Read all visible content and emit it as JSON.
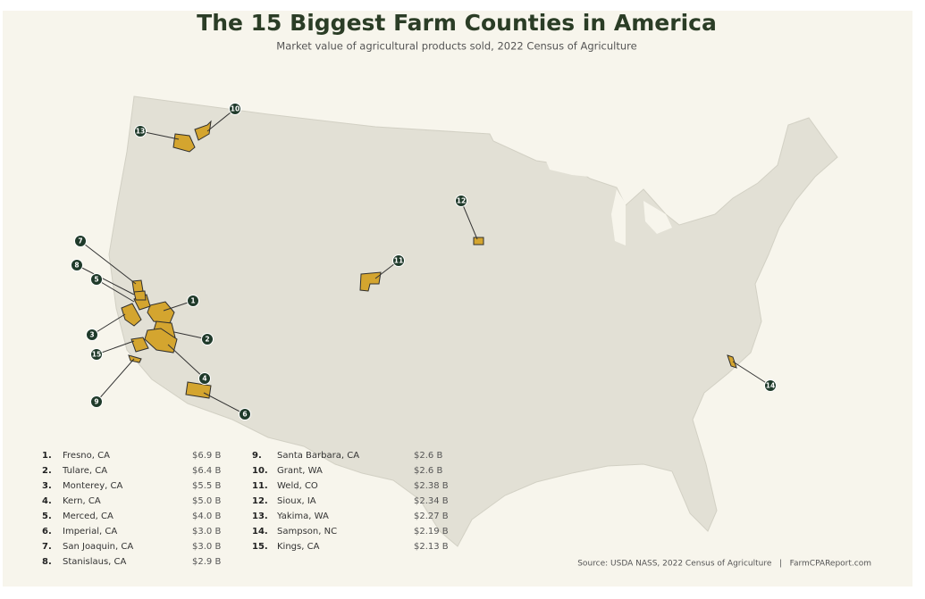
{
  "header": {
    "title": "The 15 Biggest Farm Counties in America",
    "subtitle": "Market value of agricultural products sold, 2022 Census of Agriculture"
  },
  "counties": [
    {
      "rank": 1,
      "rank_label": "1.",
      "name": "Fresno, CA",
      "value": "$6.9 B"
    },
    {
      "rank": 2,
      "rank_label": "2.",
      "name": "Tulare, CA",
      "value": "$6.4 B"
    },
    {
      "rank": 3,
      "rank_label": "3.",
      "name": "Monterey, CA",
      "value": "$5.5 B"
    },
    {
      "rank": 4,
      "rank_label": "4.",
      "name": "Kern, CA",
      "value": "$5.0 B"
    },
    {
      "rank": 5,
      "rank_label": "5.",
      "name": "Merced, CA",
      "value": "$4.0 B"
    },
    {
      "rank": 6,
      "rank_label": "6.",
      "name": "Imperial, CA",
      "value": "$3.0 B"
    },
    {
      "rank": 7,
      "rank_label": "7.",
      "name": "San Joaquin, CA",
      "value": "$3.0 B"
    },
    {
      "rank": 8,
      "rank_label": "8.",
      "name": "Stanislaus, CA",
      "value": "$2.9 B"
    },
    {
      "rank": 9,
      "rank_label": "9.",
      "name": "Santa Barbara, CA",
      "value": "$2.6 B"
    },
    {
      "rank": 10,
      "rank_label": "10.",
      "name": "Grant, WA",
      "value": "$2.6 B"
    },
    {
      "rank": 11,
      "rank_label": "11.",
      "name": "Weld, CO",
      "value": "$2.38 B"
    },
    {
      "rank": 12,
      "rank_label": "12.",
      "name": "Sioux, IA",
      "value": "$2.34 B"
    },
    {
      "rank": 13,
      "rank_label": "13.",
      "name": "Yakima, WA",
      "value": "$2.27 B"
    },
    {
      "rank": 14,
      "rank_label": "14.",
      "name": "Sampson, NC",
      "value": "$2.19 B"
    },
    {
      "rank": 15,
      "rank_label": "15.",
      "name": "Kings, CA",
      "value": "$2.13 B"
    }
  ],
  "source": "Source: USDA NASS, 2022 Census of Agriculture   |   FarmCPAReport.com"
}
